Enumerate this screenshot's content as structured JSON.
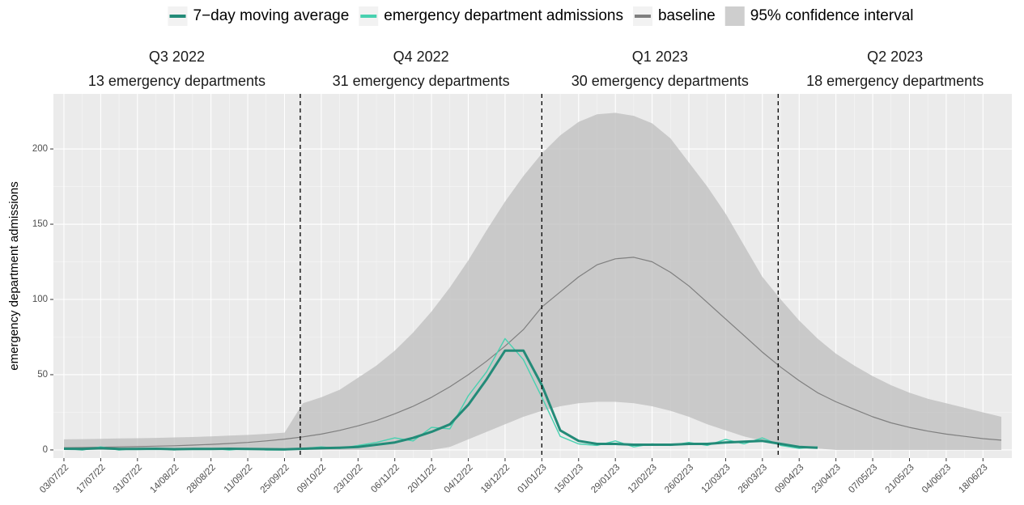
{
  "chart_data": {
    "type": "line",
    "y_label": "emergency department admissions",
    "x": [
      "03/07/22",
      "10/07/22",
      "17/07/22",
      "24/07/22",
      "31/07/22",
      "07/08/22",
      "14/08/22",
      "21/08/22",
      "28/08/22",
      "04/09/22",
      "11/09/22",
      "18/09/22",
      "25/09/22",
      "02/10/22",
      "09/10/22",
      "16/10/22",
      "23/10/22",
      "30/10/22",
      "06/11/22",
      "13/11/22",
      "20/11/22",
      "27/11/22",
      "04/12/22",
      "11/12/22",
      "18/12/22",
      "25/12/22",
      "01/01/23",
      "08/01/23",
      "15/01/23",
      "22/01/23",
      "29/01/23",
      "05/02/23",
      "12/02/23",
      "19/02/23",
      "26/02/23",
      "05/03/23",
      "12/03/23",
      "19/03/23",
      "26/03/23",
      "02/04/23",
      "09/04/23",
      "16/04/23",
      "23/04/23",
      "30/04/23",
      "07/05/23",
      "14/05/23",
      "21/05/23",
      "28/05/23",
      "04/06/23",
      "11/06/23",
      "18/06/23",
      "25/06/23"
    ],
    "series": [
      {
        "name": "7−day moving average",
        "color": "#238b78",
        "values": [
          0.8,
          0.7,
          1.2,
          0.6,
          0.6,
          0.8,
          0.5,
          0.6,
          0.7,
          0.8,
          0.6,
          0.5,
          0.4,
          0.8,
          1.2,
          1.5,
          2,
          3.5,
          5,
          8,
          12,
          17,
          30,
          47,
          66,
          66,
          43,
          13,
          6,
          4,
          4,
          3.5,
          3.5,
          3.5,
          4,
          4,
          5,
          5.5,
          6,
          4,
          2,
          1.5,
          null,
          null,
          null,
          null,
          null,
          null,
          null,
          null,
          null,
          null
        ]
      },
      {
        "name": "emergency department admissions",
        "color": "#48d1b0",
        "values": [
          1,
          0,
          2,
          0,
          1,
          1,
          0,
          1,
          1,
          0,
          1,
          0,
          0,
          1,
          2,
          1,
          3,
          5,
          8,
          6,
          15,
          14,
          36,
          52,
          74,
          60,
          35,
          9,
          4,
          3,
          6,
          2,
          4,
          3,
          5,
          3,
          7,
          4,
          8,
          3,
          1,
          2,
          null,
          null,
          null,
          null,
          null,
          null,
          null,
          null,
          null,
          null
        ]
      },
      {
        "name": "baseline",
        "color": "#7f7f7f",
        "values": [
          1.5,
          1.6,
          1.8,
          2,
          2.2,
          2.5,
          2.8,
          3.2,
          3.7,
          4.3,
          5,
          6,
          7.2,
          8.7,
          10.5,
          13,
          16,
          19.5,
          24,
          29,
          35,
          42,
          50,
          59,
          69,
          80,
          95,
          105,
          115,
          123,
          127,
          128,
          125,
          118,
          109,
          98,
          87,
          76,
          65,
          55,
          46,
          38,
          32,
          27,
          22,
          18,
          15,
          12.5,
          10.5,
          9,
          7.5,
          6.5
        ]
      },
      {
        "name": "95% confidence interval",
        "color": "#bdbdbd",
        "upper": [
          7,
          7.2,
          7.4,
          7.6,
          7.8,
          8,
          8.3,
          8.6,
          9,
          9.5,
          10,
          10.7,
          11.5,
          31,
          35,
          40,
          48,
          56,
          66,
          78,
          92,
          108,
          126,
          146,
          165,
          182,
          197,
          209,
          218,
          223,
          224,
          222,
          217,
          207,
          191,
          175,
          157,
          136,
          115,
          100,
          86,
          74,
          64,
          56,
          49,
          43,
          38,
          34,
          31,
          28,
          25,
          22
        ],
        "lower": [
          0,
          0,
          0,
          0,
          0,
          0,
          0,
          0,
          0,
          0,
          0,
          0,
          0,
          0,
          0,
          0,
          0,
          0,
          0,
          0,
          0,
          2,
          7,
          12,
          17,
          22,
          26,
          29,
          31,
          32,
          32,
          31,
          29,
          26,
          22,
          17,
          13,
          9,
          6,
          4,
          2,
          1,
          0,
          0,
          0,
          0,
          0,
          0,
          0,
          0,
          0,
          0
        ]
      }
    ],
    "xlim": [
      "29/06/22",
      "29/06/23"
    ],
    "xticks": [
      "03/07/22",
      "17/07/22",
      "31/07/22",
      "14/08/22",
      "28/08/22",
      "11/09/22",
      "25/09/22",
      "09/10/22",
      "23/10/22",
      "06/11/22",
      "20/11/22",
      "04/12/22",
      "18/12/22",
      "01/01/23",
      "15/01/23",
      "29/01/23",
      "12/02/23",
      "26/02/23",
      "12/03/23",
      "26/03/23",
      "09/04/23",
      "23/04/23",
      "07/05/23",
      "21/05/23",
      "04/06/23",
      "18/06/23"
    ],
    "ylim": [
      -5.4,
      236.6
    ],
    "yticks": [
      0,
      50,
      100,
      150,
      200
    ],
    "vlines": [
      "01/10/22",
      "01/01/23",
      "01/04/23"
    ],
    "panels": [
      {
        "title": "Q3 2022",
        "subtitle": "13 emergency departments"
      },
      {
        "title": "Q4 2022",
        "subtitle": "31 emergency departments"
      },
      {
        "title": "Q1 2023",
        "subtitle": "30 emergency departments"
      },
      {
        "title": "Q2 2023",
        "subtitle": "18 emergency departments"
      }
    ],
    "grid": true,
    "legend": "top"
  }
}
